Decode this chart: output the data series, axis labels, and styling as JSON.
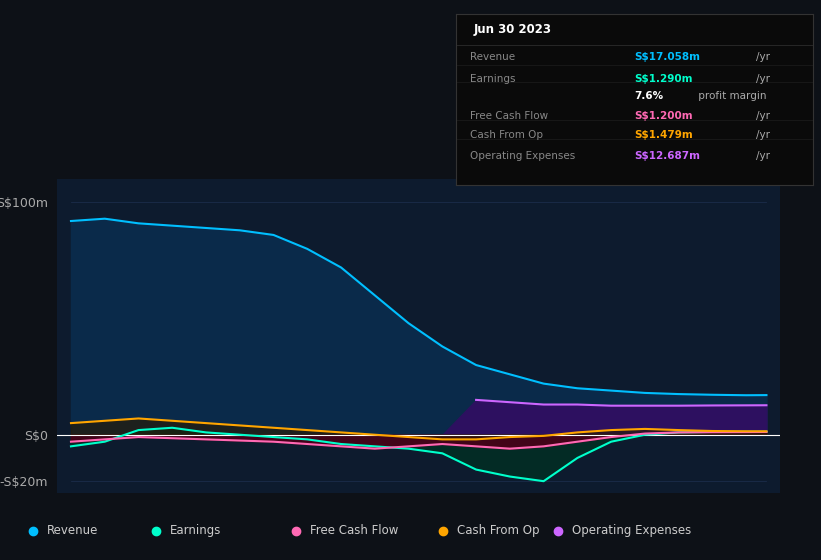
{
  "bg_color": "#0d1117",
  "plot_bg_color": "#0d1b2e",
  "grid_color": "#1e3050",
  "zero_line_color": "#ffffff",
  "years": [
    2013,
    2013.5,
    2014,
    2014.5,
    2015,
    2015.5,
    2016,
    2016.5,
    2017,
    2017.5,
    2018,
    2018.5,
    2019,
    2019.5,
    2020,
    2020.5,
    2021,
    2021.5,
    2022,
    2022.5,
    2023,
    2023.3
  ],
  "revenue": [
    92,
    93,
    91,
    90,
    89,
    88,
    86,
    80,
    72,
    60,
    48,
    38,
    30,
    26,
    22,
    20,
    19,
    18,
    17.5,
    17.2,
    17.0,
    17.058
  ],
  "earnings": [
    -5,
    -3,
    2,
    3,
    1,
    0,
    -1,
    -2,
    -4,
    -5,
    -6,
    -8,
    -15,
    -18,
    -20,
    -10,
    -3,
    0,
    1,
    1.2,
    1.25,
    1.29
  ],
  "free_cash_flow": [
    -3,
    -2,
    -1,
    -1.5,
    -2,
    -2.5,
    -3,
    -4,
    -5,
    -6,
    -5,
    -4,
    -5,
    -6,
    -5,
    -3,
    -1,
    0.5,
    1,
    1.1,
    1.15,
    1.2
  ],
  "cash_from_op": [
    5,
    6,
    7,
    6,
    5,
    4,
    3,
    2,
    1,
    0,
    -1,
    -2,
    -2,
    -1,
    -0.5,
    1,
    2,
    2.5,
    2,
    1.6,
    1.5,
    1.479
  ],
  "op_expenses": [
    0,
    0,
    0,
    0,
    0,
    0,
    0,
    0,
    0,
    0,
    0,
    0,
    15,
    14,
    13,
    13,
    12.5,
    12.5,
    12.5,
    12.6,
    12.65,
    12.687
  ],
  "revenue_color": "#00bfff",
  "revenue_fill": "#0a2a4a",
  "earnings_color": "#00ffcc",
  "free_cash_flow_color": "#ff69b4",
  "cash_from_op_color": "#ffa500",
  "op_expenses_color": "#cc66ff",
  "ylim_min": -25,
  "ylim_max": 110,
  "yticks": [
    -20,
    0,
    100
  ],
  "ytick_labels": [
    "-S$20m",
    "S$0",
    "S$100m"
  ],
  "xticks": [
    2013,
    2014,
    2015,
    2016,
    2017,
    2018,
    2019,
    2020,
    2021,
    2022,
    2023
  ],
  "info_box_title": "Jun 30 2023",
  "info_rows": [
    {
      "label": "Revenue",
      "value": "S$17.058m",
      "unit": "/yr",
      "color": "#00bfff",
      "bold": false
    },
    {
      "label": "Earnings",
      "value": "S$1.290m",
      "unit": "/yr",
      "color": "#00ffcc",
      "bold": false
    },
    {
      "label": "",
      "value": "7.6%",
      "unit": " profit margin",
      "color": "#ffffff",
      "bold": true
    },
    {
      "label": "Free Cash Flow",
      "value": "S$1.200m",
      "unit": "/yr",
      "color": "#ff69b4",
      "bold": false
    },
    {
      "label": "Cash From Op",
      "value": "S$1.479m",
      "unit": "/yr",
      "color": "#ffa500",
      "bold": false
    },
    {
      "label": "Operating Expenses",
      "value": "S$12.687m",
      "unit": "/yr",
      "color": "#cc66ff",
      "bold": false
    }
  ],
  "legend_items": [
    {
      "label": "Revenue",
      "color": "#00bfff"
    },
    {
      "label": "Earnings",
      "color": "#00ffcc"
    },
    {
      "label": "Free Cash Flow",
      "color": "#ff69b4"
    },
    {
      "label": "Cash From Op",
      "color": "#ffa500"
    },
    {
      "label": "Operating Expenses",
      "color": "#cc66ff"
    }
  ]
}
